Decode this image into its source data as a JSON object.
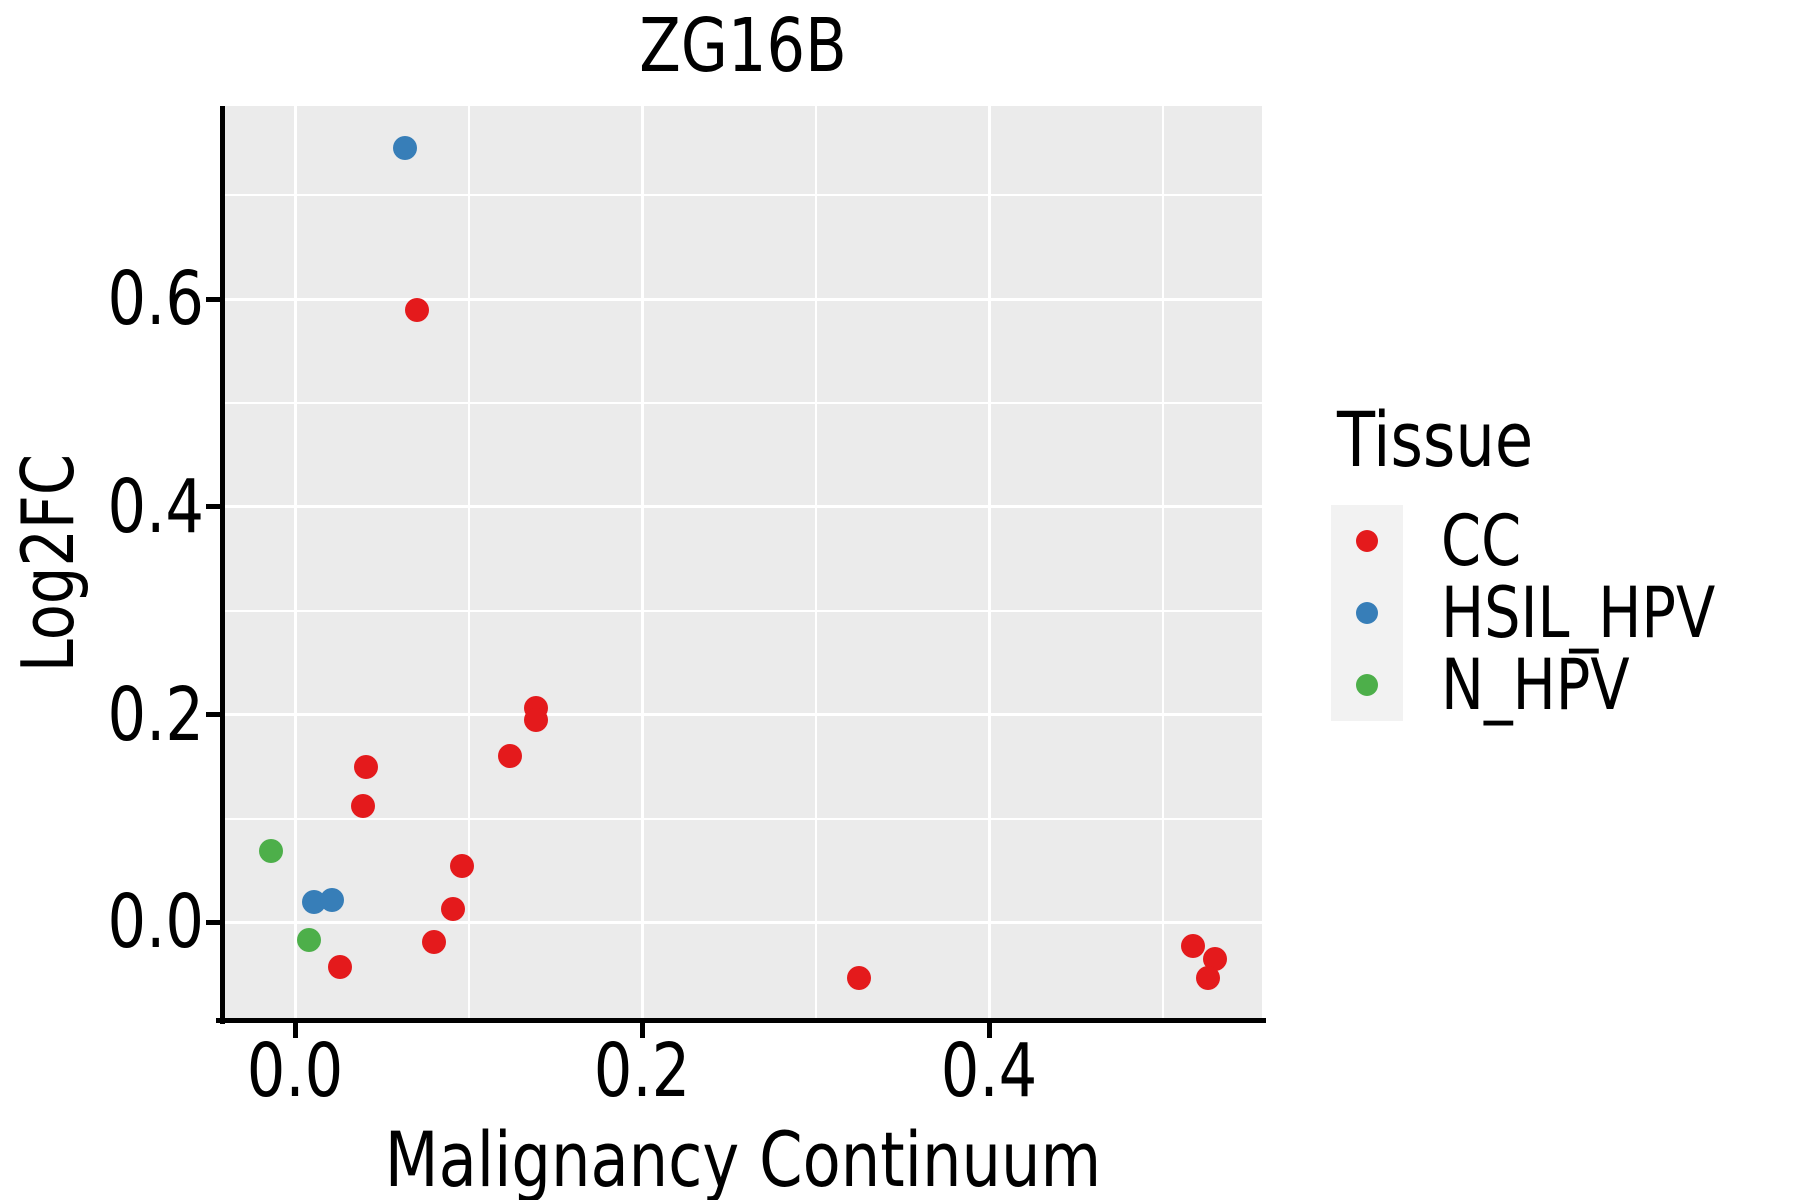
{
  "title": "ZG16B",
  "axes": {
    "x": {
      "label": "Malignancy Continuum",
      "tick_labels": [
        "0.0",
        "0.2",
        "0.4"
      ],
      "tick_values": [
        0.0,
        0.2,
        0.4
      ],
      "minor_values": [
        0.1,
        0.3,
        0.5
      ]
    },
    "y": {
      "label": "Log2FC",
      "tick_labels": [
        "0.0",
        "0.2",
        "0.4",
        "0.6"
      ],
      "tick_values": [
        0.0,
        0.2,
        0.4,
        0.6
      ],
      "minor_values": [
        0.1,
        0.3,
        0.5,
        0.7
      ]
    }
  },
  "legend": {
    "title": "Tissue",
    "items": [
      {
        "label": "CC",
        "color": "#E41A1C"
      },
      {
        "label": "HSIL_HPV",
        "color": "#377EB8"
      },
      {
        "label": "N_HPV",
        "color": "#4DAF4A"
      }
    ]
  },
  "colors": {
    "panel_background": "#EBEBEB",
    "gridline": "#FFFFFF",
    "axis": "#000000",
    "legend_key_background": "#F2F2F2"
  },
  "chart_data": {
    "type": "scatter",
    "title": "ZG16B",
    "xlabel": "Malignancy Continuum",
    "ylabel": "Log2FC",
    "xlim": [
      -0.041,
      0.557
    ],
    "ylim": [
      -0.094,
      0.786
    ],
    "grid": "major-and-minor",
    "legend_position": "right",
    "series": [
      {
        "name": "CC",
        "color": "#E41A1C",
        "points": [
          [
            0.07,
            0.59
          ],
          [
            0.139,
            0.206
          ],
          [
            0.139,
            0.195
          ],
          [
            0.124,
            0.16
          ],
          [
            0.041,
            0.15
          ],
          [
            0.039,
            0.112
          ],
          [
            0.096,
            0.054
          ],
          [
            0.091,
            0.013
          ],
          [
            0.08,
            -0.019
          ],
          [
            0.026,
            -0.043
          ],
          [
            0.325,
            -0.054
          ],
          [
            0.517,
            -0.023
          ],
          [
            0.53,
            -0.035
          ],
          [
            0.526,
            -0.054
          ]
        ]
      },
      {
        "name": "HSIL_HPV",
        "color": "#377EB8",
        "points": [
          [
            0.063,
            0.746
          ],
          [
            0.011,
            0.02
          ],
          [
            0.021,
            0.022
          ]
        ]
      },
      {
        "name": "N_HPV",
        "color": "#4DAF4A",
        "points": [
          [
            -0.014,
            0.069
          ],
          [
            0.008,
            -0.017
          ]
        ]
      }
    ]
  }
}
